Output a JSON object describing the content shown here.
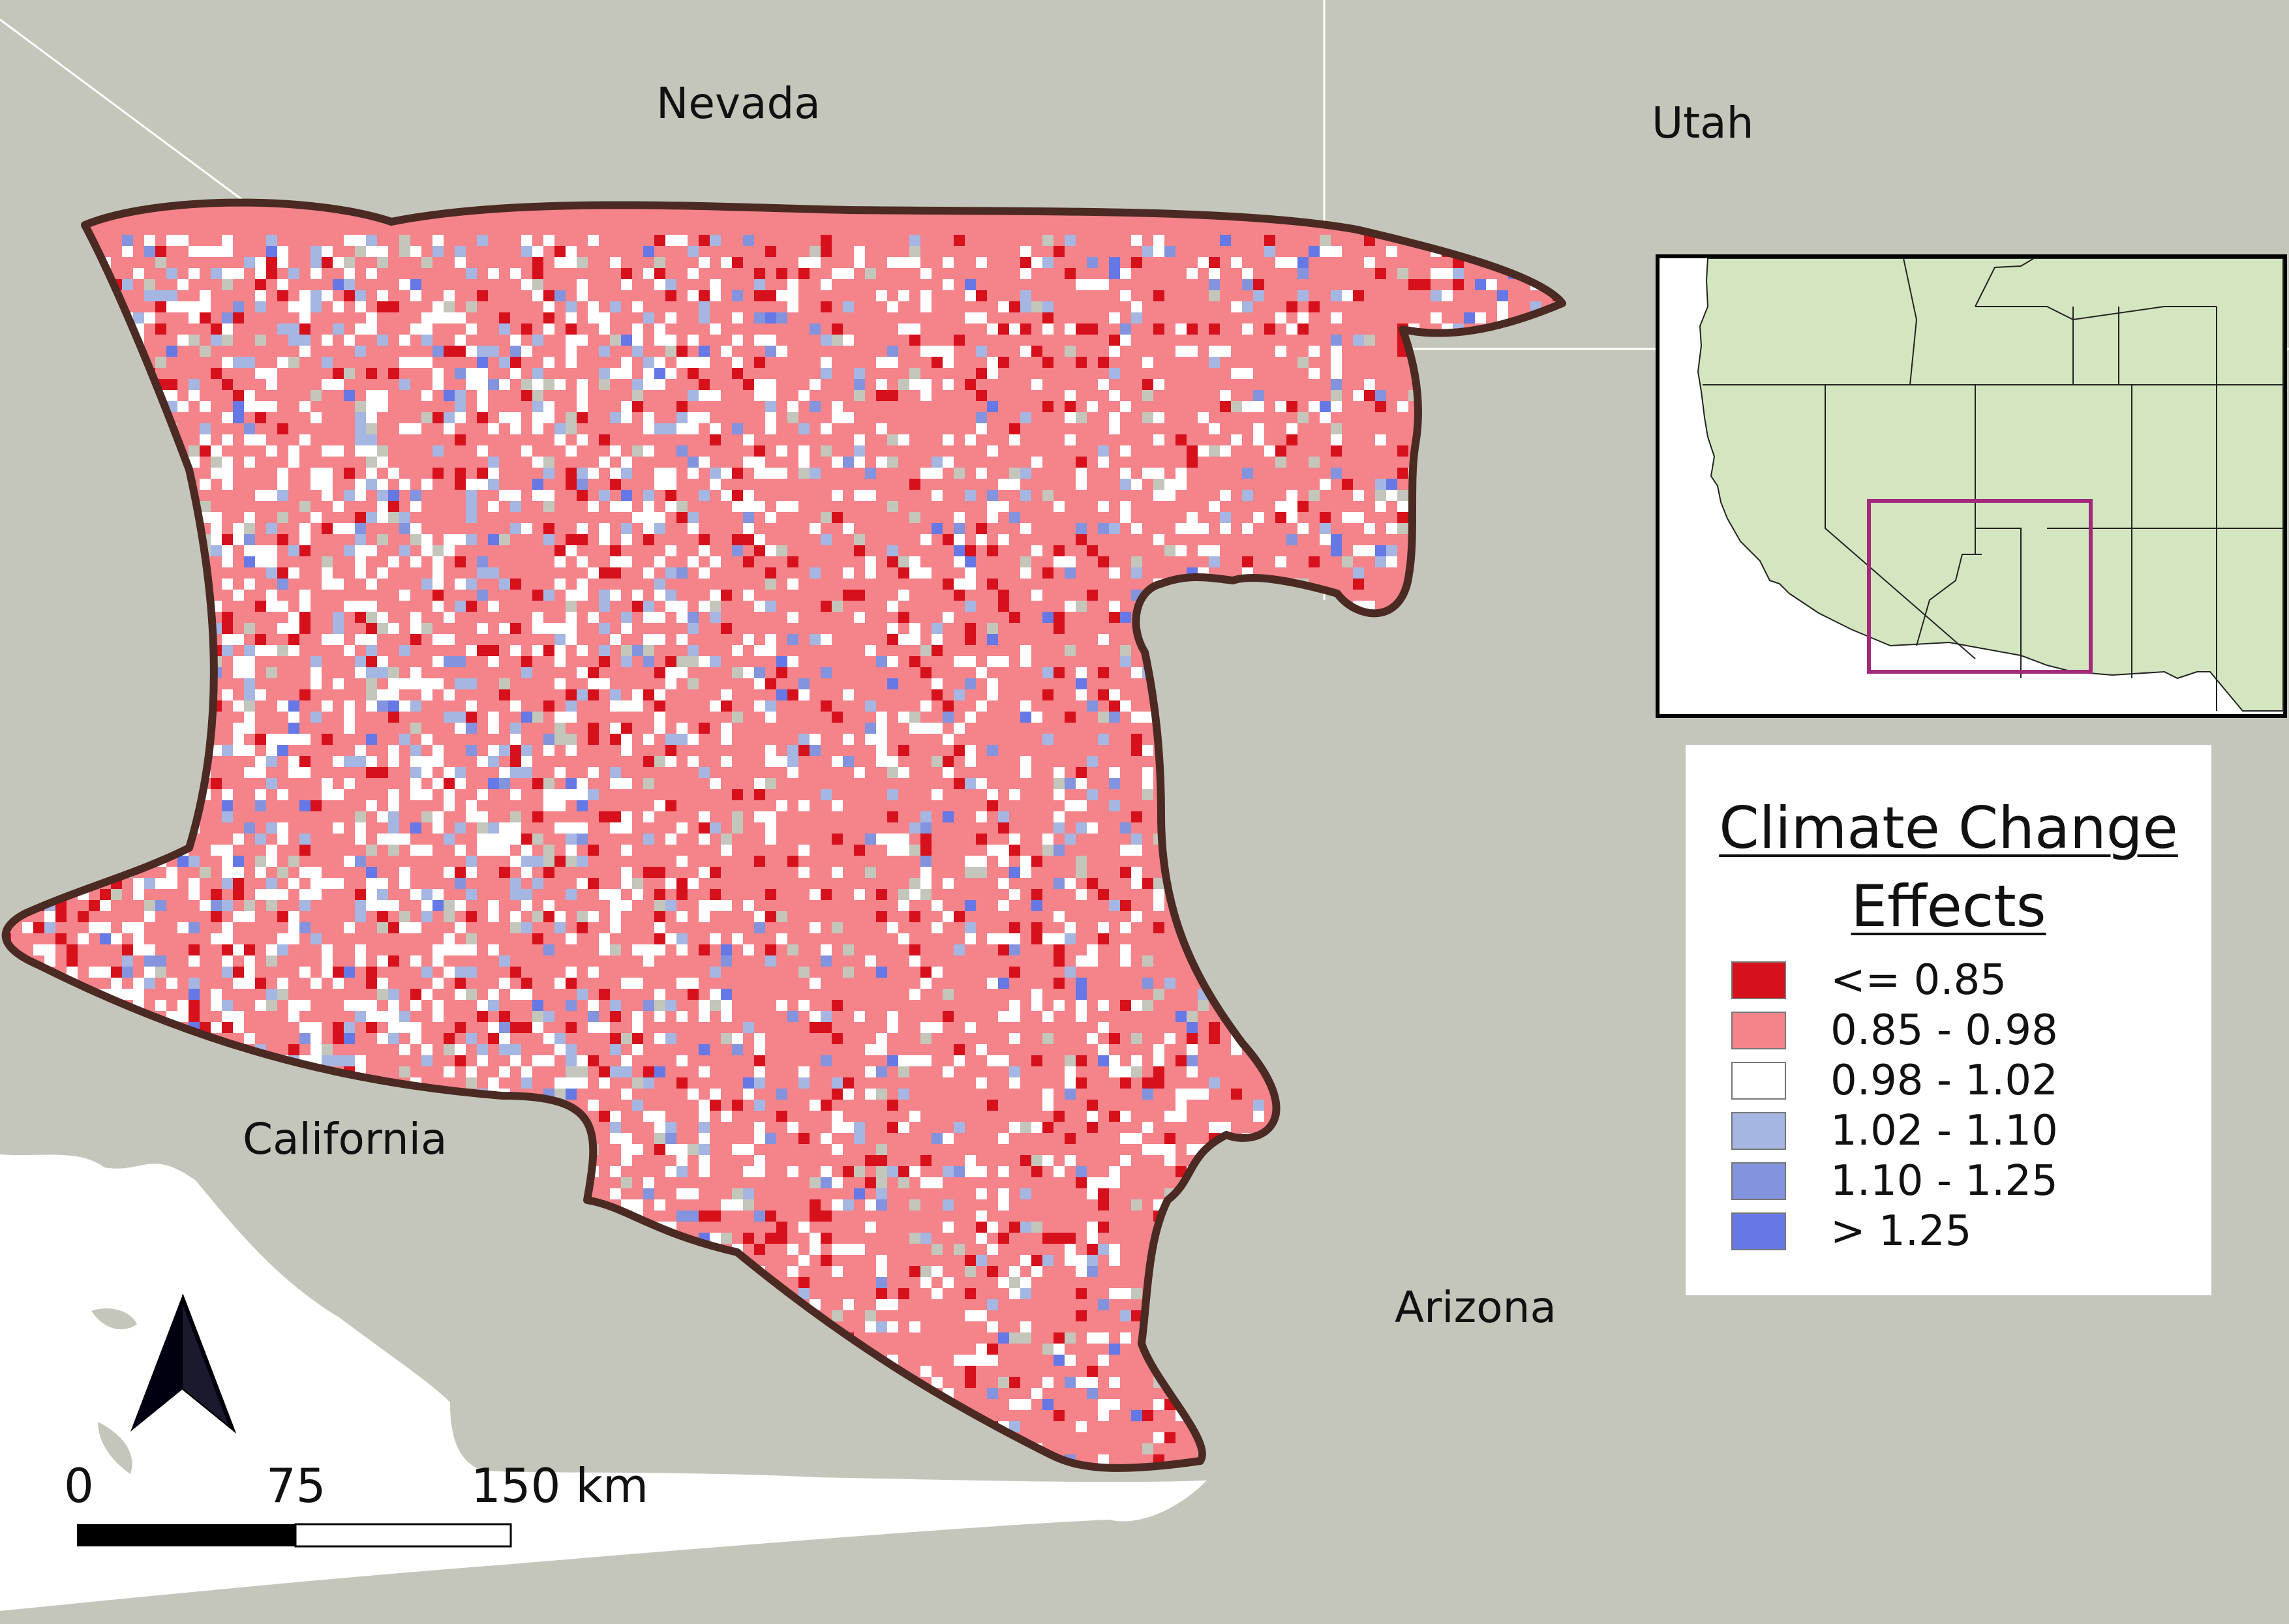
{
  "map": {
    "state_labels": {
      "nevada": "Nevada",
      "utah": "Utah",
      "california": "California",
      "arizona": "Arizona"
    },
    "colors": {
      "background": "#c4c6bb",
      "ocean": "#ffffff",
      "boundary": "#4a2a22",
      "state_lines": "#ffffff",
      "inset_land": "#d3e6c0",
      "inset_box": "#a32a7a"
    }
  },
  "legend": {
    "title_line1": "Climate Change ",
    "title_line2": "Effects",
    "classes": [
      {
        "label": "<= 0.85",
        "color": "#d7111c"
      },
      {
        "label": "0.85 - 0.98",
        "color": "#f4838a"
      },
      {
        "label": "0.98 - 1.02",
        "color": "#ffffff"
      },
      {
        "label": "1.02 - 1.10",
        "color": "#a5b6e2"
      },
      {
        "label": "1.10 - 1.25",
        "color": "#8393de"
      },
      {
        "label": "> 1.25",
        "color": "#6678e6"
      }
    ]
  },
  "scale_bar": {
    "tick_0": "0",
    "tick_75": "75",
    "tick_150": "150 km"
  },
  "north_arrow": {
    "icon": "north-arrow-icon"
  }
}
